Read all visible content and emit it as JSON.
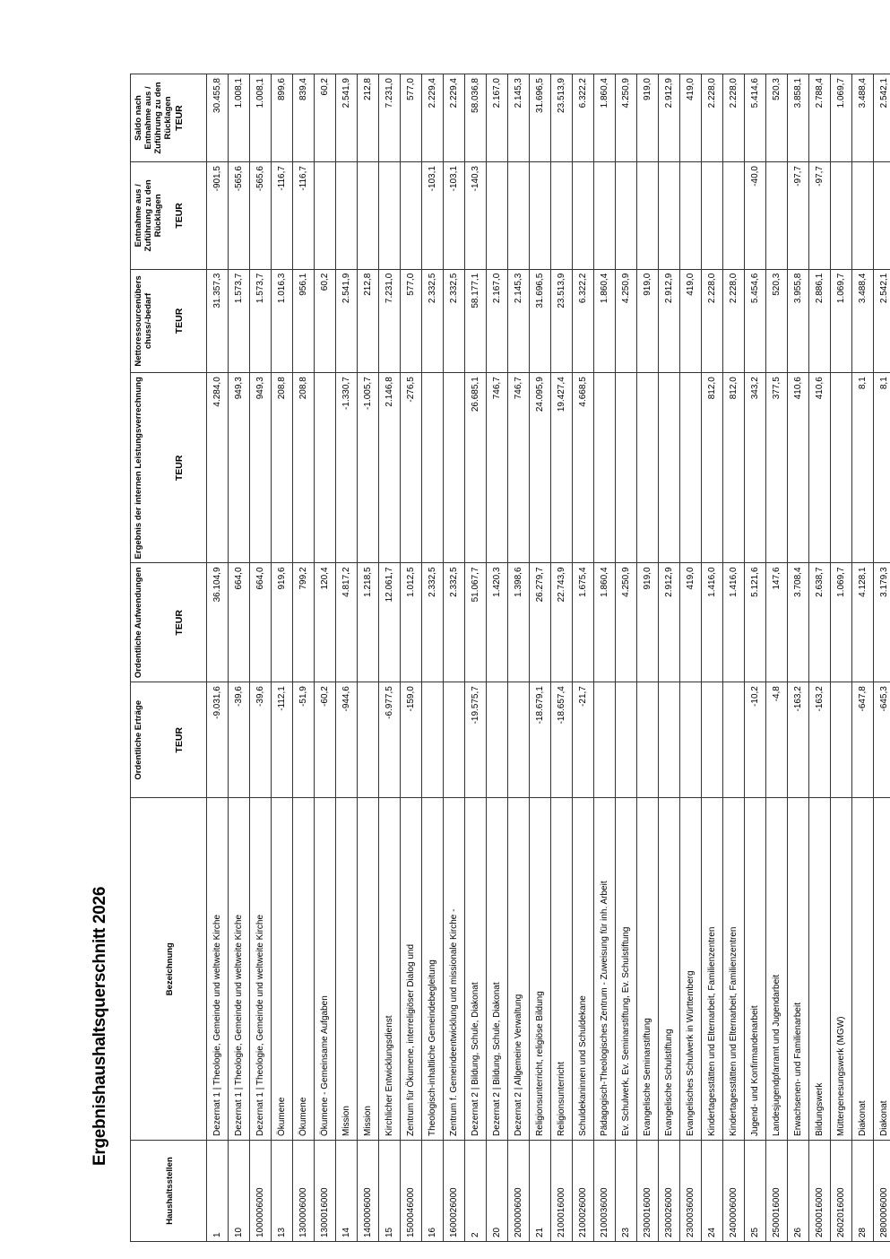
{
  "title": "Ergebnishaushaltsquerschnitt 2026",
  "headers": {
    "code": "Haushaltsstellen",
    "desc": "Bezeichnung",
    "cols": [
      {
        "label": "Ordentliche Erträge",
        "unit": "TEUR"
      },
      {
        "label": "Ordentliche Aufwendungen",
        "unit": "TEUR"
      },
      {
        "label": "Ergebnis der internen Leistungsverrechnung",
        "unit": "TEUR"
      },
      {
        "label": "Nettoressourcenüberschuss/-bedarf",
        "unit": "TEUR"
      },
      {
        "label": "Entnahme aus / Zuführung zu den Rücklagen",
        "unit": "TEUR"
      },
      {
        "label": "Saldo nach Entnahme aus / Zuführung zu den Rücklagen",
        "unit": "TEUR"
      }
    ]
  },
  "rows": [
    {
      "code": "1",
      "desc": "Dezernat 1 | Theologie, Gemeinde und weltweite Kirche",
      "v": [
        "-9.031,6",
        "36.104,9",
        "4.284,0",
        "31.357,3",
        "-901,5",
        "30.455,8"
      ]
    },
    {
      "code": "10",
      "desc": "Dezernat 1 | Theologie, Gemeinde und weltweite Kirche",
      "v": [
        "-39,6",
        "664,0",
        "949,3",
        "1.573,7",
        "-565,6",
        "1.008,1"
      ]
    },
    {
      "code": "1000006000",
      "desc": "Dezernat 1 | Theologie, Gemeinde und weltweite Kirche",
      "v": [
        "-39,6",
        "664,0",
        "949,3",
        "1.573,7",
        "-565,6",
        "1.008,1"
      ]
    },
    {
      "code": "13",
      "desc": "Ökumene",
      "v": [
        "-112,1",
        "919,6",
        "208,8",
        "1.016,3",
        "-116,7",
        "899,6"
      ]
    },
    {
      "code": "1300006000",
      "desc": "Ökumene",
      "v": [
        "-51,9",
        "799,2",
        "208,8",
        "956,1",
        "-116,7",
        "839,4"
      ]
    },
    {
      "code": "1300016000",
      "desc": "Ökumene - Gemeinsame Aufgaben",
      "v": [
        "-60,2",
        "120,4",
        "",
        "60,2",
        "",
        "60,2"
      ]
    },
    {
      "code": "14",
      "desc": "Mission",
      "v": [
        "-944,6",
        "4.817,2",
        "-1.330,7",
        "2.541,9",
        "",
        "2.541,9"
      ]
    },
    {
      "code": "1400006000",
      "desc": "Mission",
      "v": [
        "",
        "1.218,5",
        "-1.005,7",
        "212,8",
        "",
        "212,8"
      ]
    },
    {
      "code": "15",
      "desc": "Kirchlicher Entwicklungsdienst",
      "v": [
        "-6.977,5",
        "12.061,7",
        "2.146,8",
        "7.231,0",
        "",
        "7.231,0"
      ]
    },
    {
      "code": "1500046000",
      "desc": "Zentrum für Ökumene, interreligiöser Dialog und",
      "v": [
        "-159,0",
        "1.012,5",
        "-276,5",
        "577,0",
        "",
        "577,0"
      ]
    },
    {
      "code": "16",
      "desc": "Theologisch-inhaltliche Gemeindebegleitung",
      "v": [
        "",
        "2.332,5",
        "",
        "2.332,5",
        "-103,1",
        "2.229,4"
      ]
    },
    {
      "code": "1600026000",
      "desc": "Zentrum f. Gemeindeentwicklung und missionale Kirche -",
      "v": [
        "",
        "2.332,5",
        "",
        "2.332,5",
        "-103,1",
        "2.229,4"
      ]
    },
    {
      "code": "2",
      "desc": "Dezernat 2 | Bildung, Schule, Diakonat",
      "v": [
        "-19.575,7",
        "51.067,7",
        "26.685,1",
        "58.177,1",
        "-140,3",
        "58.036,8"
      ]
    },
    {
      "code": "20",
      "desc": "Dezernat 2 | Bildung, Schule, Diakonat",
      "v": [
        "",
        "1.420,3",
        "746,7",
        "2.167,0",
        "",
        "2.167,0"
      ]
    },
    {
      "code": "2000006000",
      "desc": "Dezernat 2 | Allgemeine Verwaltung",
      "v": [
        "",
        "1.398,6",
        "746,7",
        "2.145,3",
        "",
        "2.145,3"
      ]
    },
    {
      "code": "21",
      "desc": "Religionsunterricht, religiöse Bildung",
      "v": [
        "-18.679,1",
        "26.279,7",
        "24.095,9",
        "31.696,5",
        "",
        "31.696,5"
      ]
    },
    {
      "code": "2100016000",
      "desc": "Religionsunterricht",
      "v": [
        "-18.657,4",
        "22.743,9",
        "19.427,4",
        "23.513,9",
        "",
        "23.513,9"
      ]
    },
    {
      "code": "2100026000",
      "desc": "Schuldekaninnen und Schuldekane",
      "v": [
        "-21,7",
        "1.675,4",
        "4.668,5",
        "6.322,2",
        "",
        "6.322,2"
      ]
    },
    {
      "code": "2100036000",
      "desc": "Pädagogisch-Theologisches Zentrum - Zuweisung für inh. Arbeit",
      "v": [
        "",
        "1.860,4",
        "",
        "1.860,4",
        "",
        "1.860,4"
      ]
    },
    {
      "code": "23",
      "desc": "Ev. Schulwerk, Ev. Seminarstiftung, Ev. Schulstiftung",
      "v": [
        "",
        "4.250,9",
        "",
        "4.250,9",
        "",
        "4.250,9"
      ]
    },
    {
      "code": "2300016000",
      "desc": "Evangelische Seminarstiftung",
      "v": [
        "",
        "919,0",
        "",
        "919,0",
        "",
        "919,0"
      ]
    },
    {
      "code": "2300026000",
      "desc": "Evangelische Schulstiftung",
      "v": [
        "",
        "2.912,9",
        "",
        "2.912,9",
        "",
        "2.912,9"
      ]
    },
    {
      "code": "2300036000",
      "desc": "Evangelisches Schulwerk in Württemberg",
      "v": [
        "",
        "419,0",
        "",
        "419,0",
        "",
        "419,0"
      ]
    },
    {
      "code": "24",
      "desc": "Kindertagesstätten und Elternarbeit, Familienzentren",
      "v": [
        "",
        "1.416,0",
        "812,0",
        "2.228,0",
        "",
        "2.228,0"
      ]
    },
    {
      "code": "2400006000",
      "desc": "Kindertagesstätten und Elternarbeit, Familienzentren",
      "v": [
        "",
        "1.416,0",
        "812,0",
        "2.228,0",
        "",
        "2.228,0"
      ]
    },
    {
      "code": "25",
      "desc": "Jugend- und Konfirmandenarbeit",
      "v": [
        "-10,2",
        "5.121,6",
        "343,2",
        "5.454,6",
        "-40,0",
        "5.414,6"
      ]
    },
    {
      "code": "2500016000",
      "desc": "Landesjugendpfarramt und Jugendarbeit",
      "v": [
        "-4,8",
        "147,6",
        "377,5",
        "520,3",
        "",
        "520,3"
      ]
    },
    {
      "code": "26",
      "desc": "Erwachsenen- und Familienarbeit",
      "v": [
        "-163,2",
        "3.708,4",
        "410,6",
        "3.955,8",
        "-97,7",
        "3.858,1"
      ]
    },
    {
      "code": "2600016000",
      "desc": "Bildungswerk",
      "v": [
        "-163,2",
        "2.638,7",
        "410,6",
        "2.886,1",
        "-97,7",
        "2.788,4"
      ]
    },
    {
      "code": "2602016000",
      "desc": "Müttergenesungswerk (MGW)",
      "v": [
        "",
        "1.069,7",
        "",
        "1.069,7",
        "",
        "1.069,7"
      ]
    },
    {
      "code": "28",
      "desc": "Diakonat",
      "v": [
        "-647,8",
        "4.128,1",
        "8,1",
        "3.488,4",
        "",
        "3.488,4"
      ]
    },
    {
      "code": "2800006000",
      "desc": "Diakonat",
      "v": [
        "-645,3",
        "3.179,3",
        "8,1",
        "2.542,1",
        "",
        "2.542,1"
      ]
    }
  ]
}
